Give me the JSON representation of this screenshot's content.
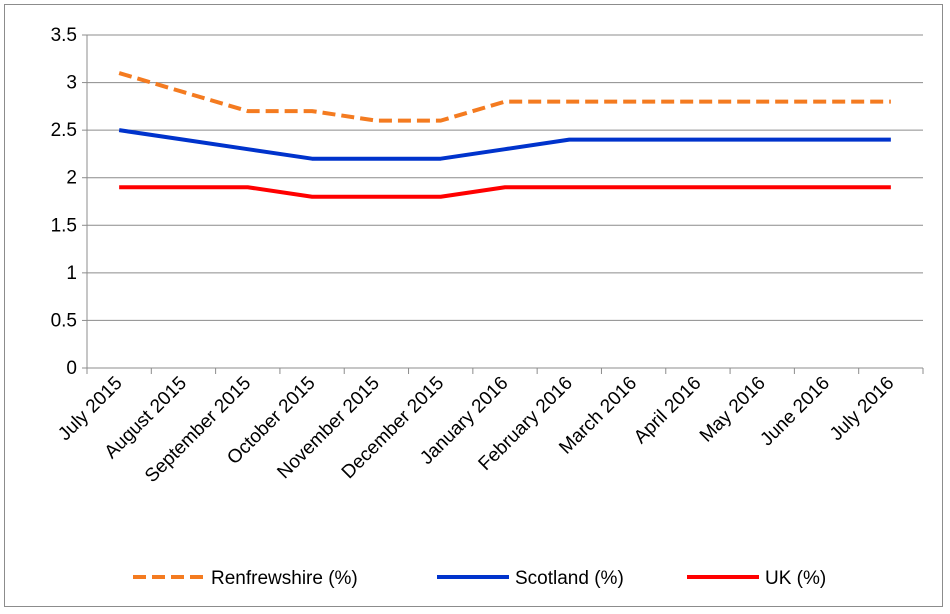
{
  "chart_data": {
    "type": "line",
    "title": "",
    "xlabel": "",
    "ylabel": "",
    "categories": [
      "July 2015",
      "August 2015",
      "September 2015",
      "October 2015",
      "November 2015",
      "December 2015",
      "January 2016",
      "February 2016",
      "March 2016",
      "April 2016",
      "May 2016",
      "June 2016",
      "July 2016"
    ],
    "ylim": [
      0,
      3.5
    ],
    "yticks": [
      "0",
      "0.5",
      "1",
      "1.5",
      "2",
      "2.5",
      "3",
      "3.5"
    ],
    "grid": "horizontal",
    "legend": "bottom",
    "series": [
      {
        "name": "Renfrewshire (%)",
        "color": "#F47B20",
        "dashed": true,
        "values": [
          3.1,
          2.9,
          2.7,
          2.7,
          2.6,
          2.6,
          2.8,
          2.8,
          2.8,
          2.8,
          2.8,
          2.8,
          2.8
        ]
      },
      {
        "name": "Scotland (%)",
        "color": "#0033CC",
        "dashed": false,
        "values": [
          2.5,
          2.4,
          2.3,
          2.2,
          2.2,
          2.2,
          2.3,
          2.4,
          2.4,
          2.4,
          2.4,
          2.4,
          2.4
        ]
      },
      {
        "name": "UK (%)",
        "color": "#FF0000",
        "dashed": false,
        "values": [
          1.9,
          1.9,
          1.9,
          1.8,
          1.8,
          1.8,
          1.9,
          1.9,
          1.9,
          1.9,
          1.9,
          1.9,
          1.9
        ]
      }
    ]
  }
}
